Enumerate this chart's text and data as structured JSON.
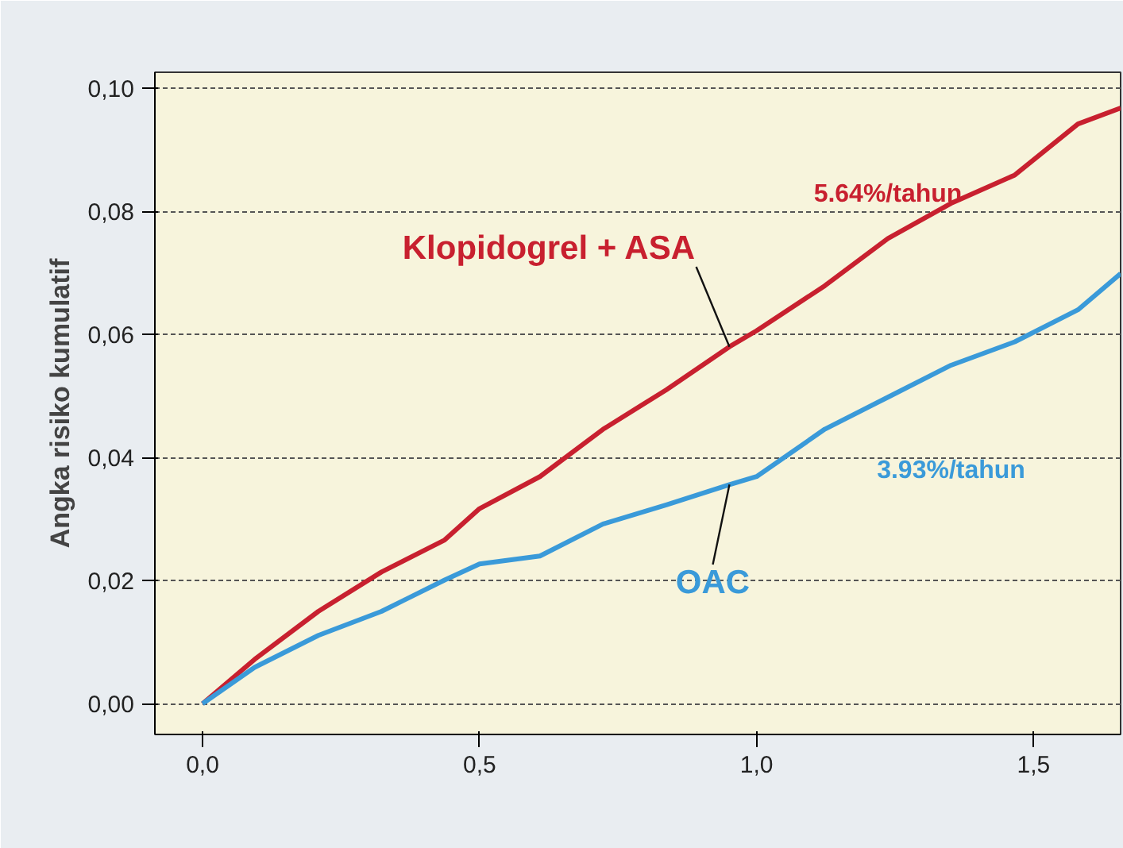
{
  "chart_data": {
    "type": "line",
    "ylabel": "Angka risiko kumulatif",
    "xlim": [
      -0.086,
      1.657
    ],
    "ylim": [
      -0.005,
      0.1026
    ],
    "xticks": [
      {
        "value": 0,
        "label": "0,0"
      },
      {
        "value": 0.5,
        "label": "0,5"
      },
      {
        "value": 1.0,
        "label": "1,0"
      },
      {
        "value": 1.5,
        "label": "1,5"
      }
    ],
    "yticks": [
      {
        "value": 0,
        "label": "0,00"
      },
      {
        "value": 0.02,
        "label": "0,02"
      },
      {
        "value": 0.04,
        "label": "0,04"
      },
      {
        "value": 0.06,
        "label": "0,06"
      },
      {
        "value": 0.08,
        "label": "0,08"
      },
      {
        "value": 0.1,
        "label": "0,10"
      }
    ],
    "grid": "y",
    "line_style": "solid",
    "x": [
      0,
      0.094,
      0.209,
      0.323,
      0.437,
      0.5,
      0.609,
      0.723,
      0.837,
      0.951,
      1.0,
      1.123,
      1.237,
      1.351,
      1.466,
      1.58,
      1.657
    ],
    "series": [
      {
        "name": "Klopidogrel + ASA",
        "color": "#c8202f",
        "values": [
          0,
          0.0072,
          0.015,
          0.0214,
          0.0266,
          0.0317,
          0.0369,
          0.0446,
          0.051,
          0.058,
          0.0606,
          0.0679,
          0.0756,
          0.0813,
          0.0859,
          0.0942,
          0.0968
        ]
      },
      {
        "name": "OAC",
        "color": "#3a9ad9",
        "values": [
          0,
          0.0059,
          0.0111,
          0.015,
          0.0201,
          0.0227,
          0.024,
          0.0292,
          0.0323,
          0.0356,
          0.0369,
          0.0446,
          0.0498,
          0.055,
          0.0588,
          0.064,
          0.0699
        ]
      }
    ],
    "annotations": [
      "5.64%/tahun",
      "3.93%/tahun"
    ]
  }
}
